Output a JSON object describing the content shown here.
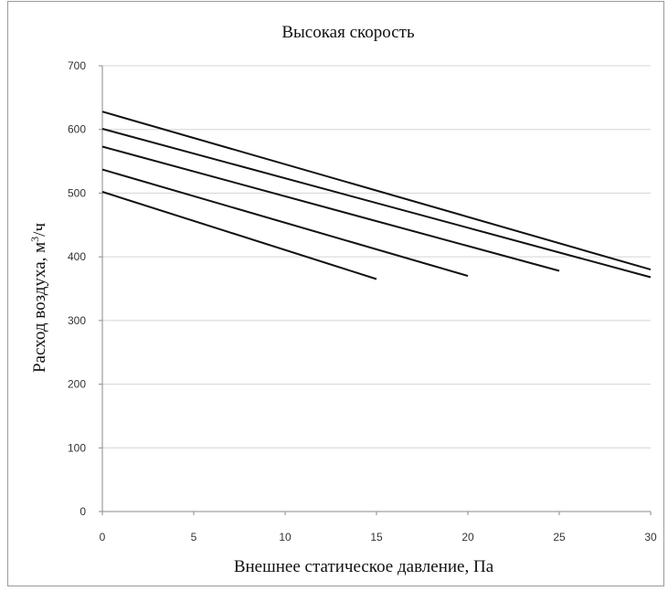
{
  "chart_data": {
    "type": "line",
    "title": "Высокая скорость",
    "xlabel": "Внешнее статическое давление, Па",
    "ylabel_main": "Расход воздуха, м",
    "ylabel_sup": "3",
    "ylabel_tail": "/ч",
    "xlim": [
      0,
      30
    ],
    "ylim": [
      0,
      700
    ],
    "x_ticks": [
      0,
      5,
      10,
      15,
      20,
      25,
      30
    ],
    "y_ticks": [
      0,
      100,
      200,
      300,
      400,
      500,
      600,
      700
    ],
    "grid": true,
    "legend": "none",
    "series": [
      {
        "x": [
          0,
          15
        ],
        "values": [
          502,
          365
        ]
      },
      {
        "x": [
          0,
          20
        ],
        "values": [
          537,
          370
        ]
      },
      {
        "x": [
          0,
          25
        ],
        "values": [
          573,
          378
        ]
      },
      {
        "x": [
          0,
          30
        ],
        "values": [
          601,
          368
        ]
      },
      {
        "x": [
          0,
          30
        ],
        "values": [
          628,
          380
        ]
      }
    ]
  }
}
